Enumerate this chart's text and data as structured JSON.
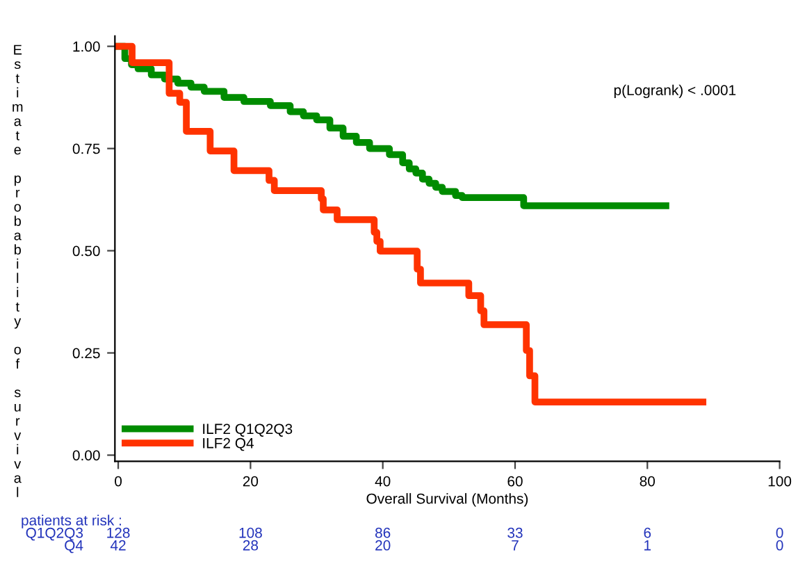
{
  "chart_data": {
    "type": "step",
    "xlabel": "Overall Survival (Months)",
    "ylabel": "Estimate probability of survival",
    "series": [
      {
        "name": "ILF2 Q1Q2Q3",
        "color": "#008c00",
        "x": [
          0,
          1,
          2,
          3,
          5,
          7,
          9,
          11,
          13,
          16,
          19,
          23,
          26,
          28,
          30,
          32,
          34,
          36,
          38,
          41,
          43,
          44,
          45,
          46,
          47,
          48,
          49,
          51,
          52,
          61.3,
          82.8
        ],
        "values": [
          1.0,
          0.97,
          0.955,
          0.945,
          0.93,
          0.92,
          0.91,
          0.9,
          0.89,
          0.875,
          0.865,
          0.855,
          0.84,
          0.83,
          0.82,
          0.8,
          0.78,
          0.765,
          0.75,
          0.735,
          0.715,
          0.7,
          0.69,
          0.675,
          0.665,
          0.655,
          0.645,
          0.635,
          0.63,
          0.61,
          0.61
        ]
      },
      {
        "name": "ILF2 Q4",
        "color": "#ff3300",
        "x": [
          0,
          2.1,
          7.7,
          9.3,
          10.3,
          13.9,
          17.5,
          22.8,
          23.6,
          30.7,
          31.0,
          33.1,
          38.7,
          39.1,
          39.6,
          45.2,
          45.7,
          53.0,
          54.8,
          55.3,
          61.7,
          62.2,
          63.0,
          88.4
        ],
        "values": [
          1.0,
          0.96,
          0.885,
          0.863,
          0.792,
          0.744,
          0.696,
          0.672,
          0.647,
          0.627,
          0.6,
          0.576,
          0.545,
          0.523,
          0.499,
          0.455,
          0.421,
          0.39,
          0.353,
          0.319,
          0.256,
          0.194,
          0.13,
          0.13
        ]
      }
    ],
    "xlim": [
      -0.5,
      100
    ],
    "xticks": [
      0,
      20,
      40,
      60,
      80,
      100
    ],
    "ylim": [
      -0.015,
      1.025
    ],
    "yticks": [
      {
        "value": 0,
        "label": "0.00"
      },
      {
        "value": 0.25,
        "label": "0.25"
      },
      {
        "value": 0.5,
        "label": "0.50"
      },
      {
        "value": 0.75,
        "label": "0.75"
      },
      {
        "value": 1,
        "label": "1.00"
      }
    ],
    "legend": "bottom left",
    "grid": false,
    "annotations": [
      "p(Logrank) < .0001",
      "patients at risk :",
      "Q1Q2Q3",
      "128",
      "108",
      "86",
      "33",
      "6",
      "0",
      "Q4",
      "42",
      "28",
      "20",
      "7",
      "1",
      "0"
    ]
  }
}
